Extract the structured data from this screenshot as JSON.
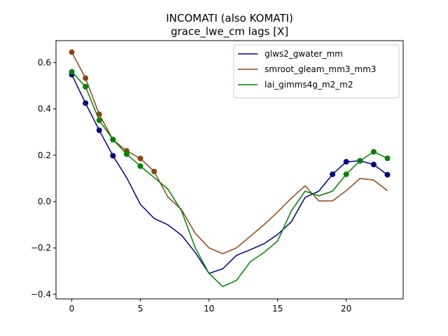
{
  "chart_data": {
    "type": "line",
    "title": "INCOMATI (also KOMATI)",
    "subtitle": "grace_lwe_cm lags [X]",
    "xlim": [
      -1.15,
      24.15
    ],
    "ylim": [
      -0.42,
      0.695
    ],
    "x_ticks": [
      0,
      5,
      10,
      15,
      20
    ],
    "y_ticks": [
      -0.4,
      -0.2,
      0.0,
      0.2,
      0.4,
      0.6
    ],
    "y_tick_labels": [
      "−0.4",
      "−0.2",
      "0.0",
      "0.2",
      "0.4",
      "0.6"
    ],
    "grid": false,
    "legend_position": "top-right",
    "x": [
      0,
      1,
      2,
      3,
      4,
      5,
      6,
      7,
      8,
      9,
      10,
      11,
      12,
      13,
      14,
      15,
      16,
      17,
      18,
      19,
      20,
      21,
      22,
      23
    ],
    "series": [
      {
        "name": "glws2_gwater_mm",
        "color": "#00007f",
        "values": [
          0.548,
          0.425,
          0.308,
          0.198,
          0.103,
          -0.012,
          -0.073,
          -0.1,
          -0.145,
          -0.22,
          -0.31,
          -0.29,
          -0.232,
          -0.208,
          -0.182,
          -0.142,
          -0.087,
          0.018,
          0.045,
          0.118,
          0.172,
          0.176,
          0.16,
          0.116
        ],
        "markers": [
          0,
          1,
          2,
          3,
          19,
          20,
          21,
          22,
          23
        ]
      },
      {
        "name": "smroot_gleam_mm3_mm3",
        "color": "#8b4513",
        "values": [
          0.645,
          0.533,
          0.377,
          0.267,
          0.219,
          0.186,
          0.13,
          0.02,
          -0.035,
          -0.137,
          -0.2,
          -0.225,
          -0.2,
          -0.15,
          -0.1,
          -0.045,
          0.015,
          0.068,
          0.003,
          0.003,
          0.047,
          0.1,
          0.093,
          0.047
        ],
        "markers": [
          0,
          1,
          2,
          3,
          4,
          5,
          6
        ]
      },
      {
        "name": "lai_gimms4g_m2_m2",
        "color": "#008000",
        "values": [
          0.56,
          0.496,
          0.351,
          0.268,
          0.205,
          0.153,
          0.104,
          0.054,
          -0.04,
          -0.2,
          -0.31,
          -0.367,
          -0.34,
          -0.26,
          -0.22,
          -0.17,
          -0.04,
          0.045,
          0.025,
          0.045,
          0.118,
          0.176,
          0.215,
          0.187
        ],
        "markers": [
          0,
          1,
          2,
          3,
          4,
          5,
          20,
          21,
          22,
          23
        ]
      }
    ]
  }
}
